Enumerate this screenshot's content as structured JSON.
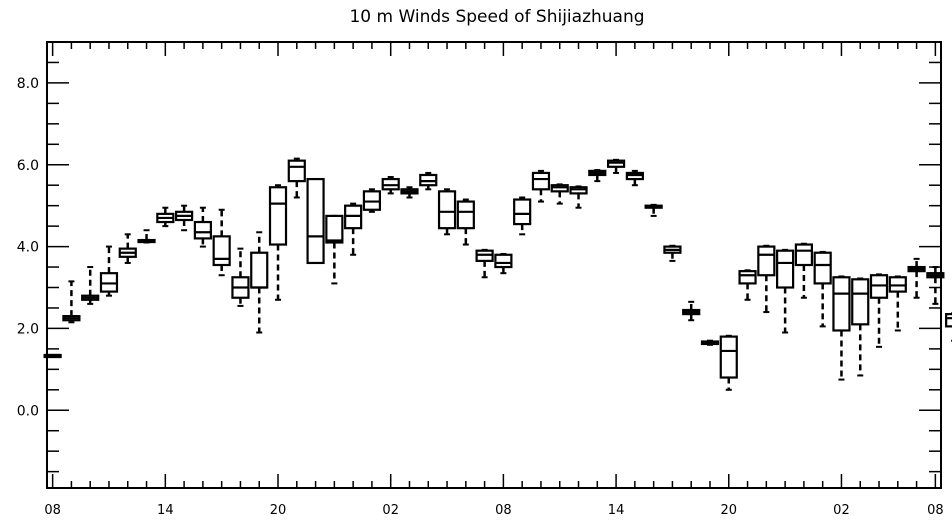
{
  "chart_data": {
    "type": "box",
    "title": "10 m Winds Speed of Shijiazhuang",
    "xlabel": "",
    "ylabel": "",
    "ylim": [
      -1.9,
      9.0
    ],
    "xlim": [
      -0.3,
      47.3
    ],
    "grid": false,
    "yticks": [
      0.0,
      2.0,
      4.0,
      6.0,
      8.0
    ],
    "ytick_labels": [
      "0.0",
      "2.0",
      "4.0",
      "6.0",
      "8.0"
    ],
    "xticks": [
      0,
      6,
      12,
      18,
      24,
      30,
      36,
      42,
      47
    ],
    "xtick_labels": [
      "08",
      "14",
      "20",
      "02",
      "08",
      "14",
      "20",
      "02",
      "08"
    ],
    "boxes": [
      {
        "x": 0,
        "min": 1.35,
        "q1": 1.35,
        "median": 1.35,
        "q3": 1.35,
        "max": 1.35
      },
      {
        "x": 1,
        "min": 2.15,
        "q1": 2.2,
        "median": 2.25,
        "q3": 2.3,
        "max": 3.15
      },
      {
        "x": 2,
        "min": 2.6,
        "q1": 2.7,
        "median": 2.75,
        "q3": 2.8,
        "max": 3.5
      },
      {
        "x": 3,
        "min": 2.8,
        "q1": 2.9,
        "median": 3.1,
        "q3": 3.35,
        "max": 4.0
      },
      {
        "x": 4,
        "min": 3.6,
        "q1": 3.75,
        "median": 3.85,
        "q3": 3.95,
        "max": 4.3
      },
      {
        "x": 5,
        "min": 4.1,
        "q1": 4.12,
        "median": 4.14,
        "q3": 4.16,
        "max": 4.4
      },
      {
        "x": 6,
        "min": 4.5,
        "q1": 4.6,
        "median": 4.7,
        "q3": 4.8,
        "max": 4.95
      },
      {
        "x": 7,
        "min": 4.4,
        "q1": 4.65,
        "median": 4.75,
        "q3": 4.85,
        "max": 5.0
      },
      {
        "x": 8,
        "min": 4.0,
        "q1": 4.2,
        "median": 4.35,
        "q3": 4.6,
        "max": 4.95
      },
      {
        "x": 9,
        "min": 3.3,
        "q1": 3.55,
        "median": 3.7,
        "q3": 4.25,
        "max": 4.9
      },
      {
        "x": 10,
        "min": 2.55,
        "q1": 2.75,
        "median": 3.0,
        "q3": 3.25,
        "max": 3.95
      },
      {
        "x": 11,
        "min": 1.9,
        "q1": 3.0,
        "median": 3.0,
        "q3": 3.85,
        "max": 4.35
      },
      {
        "x": 12,
        "min": 2.7,
        "q1": 4.05,
        "median": 5.05,
        "q3": 5.45,
        "max": 5.5
      },
      {
        "x": 13,
        "min": 5.2,
        "q1": 5.6,
        "median": 5.95,
        "q3": 6.1,
        "max": 6.15
      },
      {
        "x": 14,
        "min": 3.6,
        "q1": 3.6,
        "median": 4.25,
        "q3": 5.65,
        "max": 5.65
      },
      {
        "x": 15,
        "min": 3.1,
        "q1": 4.1,
        "median": 4.15,
        "q3": 4.75,
        "max": 4.75
      },
      {
        "x": 16,
        "min": 3.8,
        "q1": 4.45,
        "median": 4.75,
        "q3": 5.0,
        "max": 5.05
      },
      {
        "x": 17,
        "min": 4.85,
        "q1": 4.9,
        "median": 5.1,
        "q3": 5.35,
        "max": 5.4
      },
      {
        "x": 18,
        "min": 5.3,
        "q1": 5.4,
        "median": 5.5,
        "q3": 5.65,
        "max": 5.7
      },
      {
        "x": 19,
        "min": 5.2,
        "q1": 5.3,
        "median": 5.35,
        "q3": 5.4,
        "max": 5.45
      },
      {
        "x": 20,
        "min": 5.4,
        "q1": 5.5,
        "median": 5.6,
        "q3": 5.75,
        "max": 5.8
      },
      {
        "x": 21,
        "min": 4.3,
        "q1": 4.45,
        "median": 4.85,
        "q3": 5.35,
        "max": 5.4
      },
      {
        "x": 22,
        "min": 4.05,
        "q1": 4.45,
        "median": 4.85,
        "q3": 5.1,
        "max": 5.15
      },
      {
        "x": 23,
        "min": 3.25,
        "q1": 3.65,
        "median": 3.8,
        "q3": 3.9,
        "max": 3.92
      },
      {
        "x": 24,
        "min": 3.35,
        "q1": 3.5,
        "median": 3.6,
        "q3": 3.8,
        "max": 3.82
      },
      {
        "x": 25,
        "min": 4.3,
        "q1": 4.55,
        "median": 4.8,
        "q3": 5.15,
        "max": 5.2
      },
      {
        "x": 26,
        "min": 5.1,
        "q1": 5.4,
        "median": 5.65,
        "q3": 5.8,
        "max": 5.85
      },
      {
        "x": 27,
        "min": 5.05,
        "q1": 5.35,
        "median": 5.45,
        "q3": 5.5,
        "max": 5.52
      },
      {
        "x": 28,
        "min": 4.95,
        "q1": 5.3,
        "median": 5.4,
        "q3": 5.45,
        "max": 5.47
      },
      {
        "x": 29,
        "min": 5.6,
        "q1": 5.75,
        "median": 5.8,
        "q3": 5.85,
        "max": 5.87
      },
      {
        "x": 30,
        "min": 5.8,
        "q1": 5.95,
        "median": 6.05,
        "q3": 6.1,
        "max": 6.12
      },
      {
        "x": 31,
        "min": 5.5,
        "q1": 5.65,
        "median": 5.75,
        "q3": 5.8,
        "max": 5.85
      },
      {
        "x": 32,
        "min": 4.75,
        "q1": 4.95,
        "median": 4.98,
        "q3": 5.0,
        "max": 5.02
      },
      {
        "x": 33,
        "min": 3.65,
        "q1": 3.85,
        "median": 3.92,
        "q3": 4.0,
        "max": 4.02
      },
      {
        "x": 34,
        "min": 2.2,
        "q1": 2.35,
        "median": 2.4,
        "q3": 2.45,
        "max": 2.65
      },
      {
        "x": 35,
        "min": 1.6,
        "q1": 1.62,
        "median": 1.65,
        "q3": 1.68,
        "max": 1.7
      },
      {
        "x": 36,
        "min": 0.5,
        "q1": 0.8,
        "median": 1.45,
        "q3": 1.8,
        "max": 1.82
      },
      {
        "x": 37,
        "min": 2.7,
        "q1": 3.1,
        "median": 3.3,
        "q3": 3.4,
        "max": 3.42
      },
      {
        "x": 38,
        "min": 2.4,
        "q1": 3.3,
        "median": 3.8,
        "q3": 4.0,
        "max": 4.02
      },
      {
        "x": 39,
        "min": 1.9,
        "q1": 3.0,
        "median": 3.6,
        "q3": 3.9,
        "max": 3.92
      },
      {
        "x": 40,
        "min": 2.75,
        "q1": 3.55,
        "median": 3.9,
        "q3": 4.05,
        "max": 4.07
      },
      {
        "x": 41,
        "min": 2.05,
        "q1": 3.1,
        "median": 3.55,
        "q3": 3.85,
        "max": 3.87
      },
      {
        "x": 42,
        "min": 0.75,
        "q1": 1.95,
        "median": 2.85,
        "q3": 3.25,
        "max": 3.27
      },
      {
        "x": 43,
        "min": 0.85,
        "q1": 2.1,
        "median": 2.85,
        "q3": 3.2,
        "max": 3.22
      },
      {
        "x": 44,
        "min": 1.55,
        "q1": 2.75,
        "median": 3.05,
        "q3": 3.3,
        "max": 3.32
      },
      {
        "x": 45,
        "min": 1.95,
        "q1": 2.9,
        "median": 3.05,
        "q3": 3.25,
        "max": 3.27
      },
      {
        "x": 46,
        "min": 2.75,
        "q1": 3.4,
        "median": 3.45,
        "q3": 3.5,
        "max": 3.7
      },
      {
        "x": 47,
        "min": 2.6,
        "q1": 3.25,
        "median": 3.3,
        "q3": 3.35,
        "max": 3.5
      },
      {
        "x": 48,
        "min": 1.7,
        "q1": 2.05,
        "median": 2.25,
        "q3": 2.35,
        "max": 2.37
      }
    ]
  }
}
